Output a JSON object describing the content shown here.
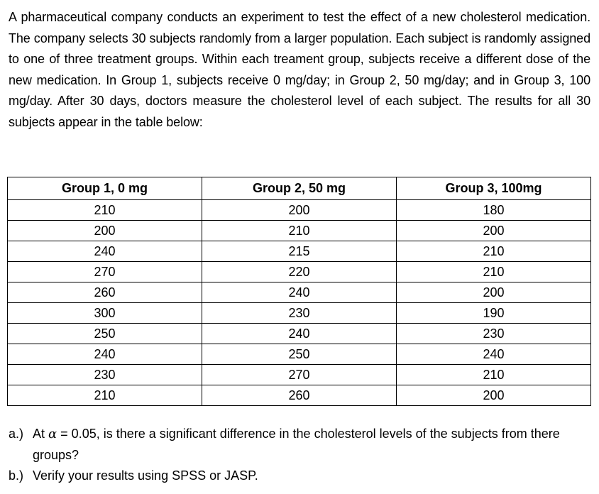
{
  "intro": {
    "paragraph": "A pharmaceutical company conducts an experiment to test the effect of a new cholesterol medication. The company selects 30 subjects randomly from a larger population. Each subject is randomly assigned to one of three treatment groups. Within each treament group, subjects receive a different dose of the new medication. In Group 1, subjects receive 0 mg/day; in Group 2, 50 mg/day; and in Group 3, 100 mg/day. After 30 days, doctors measure the cholesterol level of each subject. The results for all 30 subjects appear in the table below:"
  },
  "table": {
    "headers": [
      "Group 1, 0 mg",
      "Group 2, 50 mg",
      "Group 3, 100mg"
    ],
    "rows": [
      [
        "210",
        "200",
        "180"
      ],
      [
        "200",
        "210",
        "200"
      ],
      [
        "240",
        "215",
        "210"
      ],
      [
        "270",
        "220",
        "210"
      ],
      [
        "260",
        "240",
        "200"
      ],
      [
        "300",
        "230",
        "190"
      ],
      [
        "250",
        "240",
        "230"
      ],
      [
        "240",
        "250",
        "240"
      ],
      [
        "230",
        "270",
        "210"
      ],
      [
        "210",
        "260",
        "200"
      ]
    ]
  },
  "questions": {
    "a": {
      "marker": "a.)",
      "text_before": "At ",
      "symbol": "α",
      "text_after": " = 0.05, is there a significant difference in the cholesterol levels of the subjects from there groups?"
    },
    "b": {
      "marker": "b.)",
      "text": "Verify your results using SPSS or JASP."
    }
  }
}
